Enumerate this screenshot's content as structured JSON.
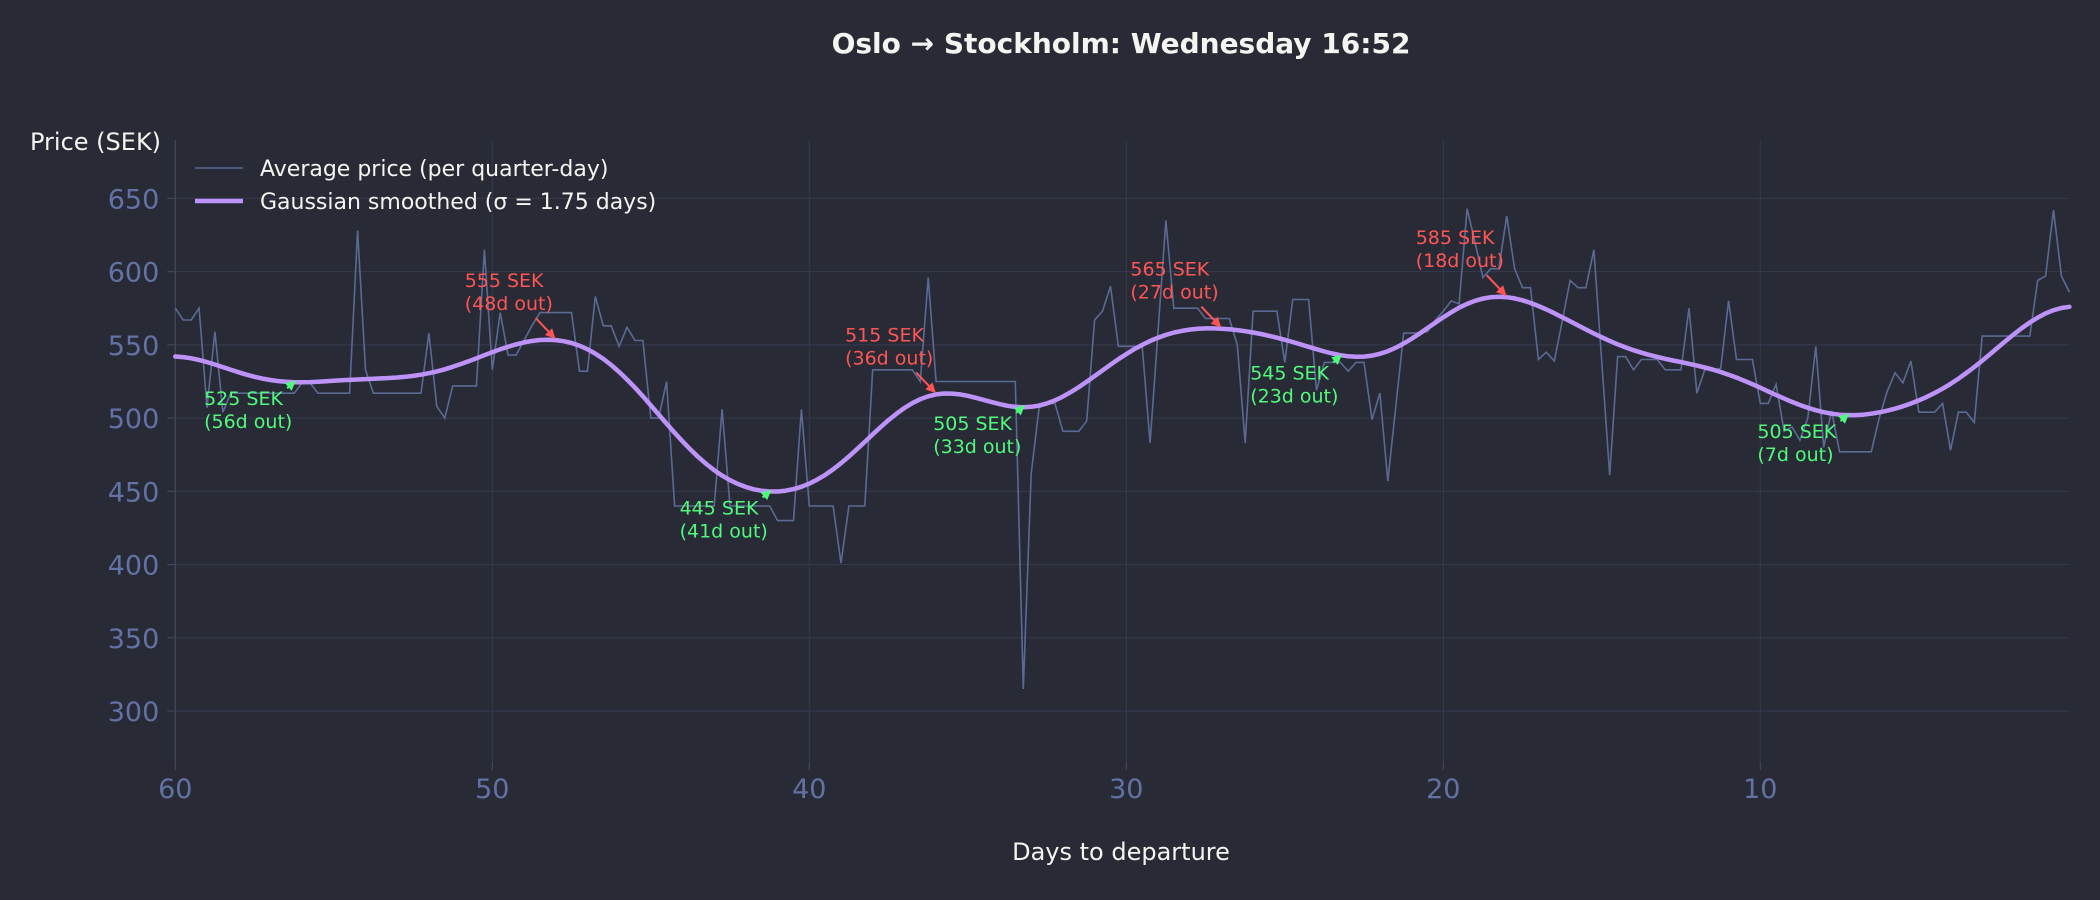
{
  "chart_data": {
    "type": "line",
    "title": "Oslo → Stockholm: Wednesday 16:52",
    "xlabel": "Days to departure",
    "ylabel": "Price (SEK)",
    "xlim": [
      60,
      0.25
    ],
    "ylim": [
      265,
      690
    ],
    "x_reversed": true,
    "grid": true,
    "legend_position": "top-left",
    "x_ticks": [
      60,
      50,
      40,
      30,
      20,
      10
    ],
    "y_ticks": [
      300,
      350,
      400,
      450,
      500,
      550,
      600,
      650
    ],
    "x_start": 60,
    "x_step": -0.25,
    "series": [
      {
        "name": "Average price (per quarter-day)",
        "color": "#5b6a94",
        "values": [
          575,
          567,
          567,
          575,
          507,
          559,
          504,
          517,
          517,
          517,
          517,
          517,
          517,
          517,
          517,
          517,
          524,
          524,
          517,
          517,
          517,
          517,
          517,
          628,
          533,
          517,
          517,
          517,
          517,
          517,
          517,
          517,
          558,
          508,
          500,
          522,
          522,
          522,
          522,
          615,
          533,
          572,
          543,
          543,
          553,
          563,
          572,
          572,
          572,
          572,
          572,
          532,
          532,
          583,
          563,
          563,
          549,
          562,
          553,
          553,
          500,
          500,
          525,
          440,
          440,
          440,
          440,
          440,
          440,
          506,
          440,
          440,
          440,
          440,
          440,
          440,
          430,
          430,
          430,
          506,
          440,
          440,
          440,
          440,
          401,
          440,
          440,
          440,
          533,
          533,
          533,
          533,
          533,
          533,
          525,
          596,
          525,
          525,
          525,
          525,
          525,
          525,
          525,
          525,
          525,
          525,
          525,
          315,
          462,
          507,
          510,
          510,
          491,
          491,
          491,
          498,
          567,
          573,
          590,
          549,
          549,
          549,
          549,
          483,
          559,
          635,
          575,
          575,
          575,
          575,
          568,
          568,
          568,
          568,
          550,
          483,
          573,
          573,
          573,
          573,
          538,
          581,
          581,
          581,
          519,
          538,
          538,
          538,
          532,
          538,
          538,
          499,
          517,
          457,
          508,
          558,
          558,
          558,
          559,
          567,
          573,
          580,
          578,
          643,
          620,
          596,
          602,
          602,
          638,
          602,
          589,
          589,
          540,
          545,
          539,
          566,
          594,
          589,
          589,
          615,
          538,
          461,
          542,
          542,
          533,
          540,
          540,
          540,
          533,
          533,
          533,
          575,
          517,
          533,
          533,
          534,
          580,
          540,
          540,
          540,
          510,
          510,
          523,
          491,
          494,
          485,
          500,
          549,
          480,
          505,
          477,
          477,
          477,
          477,
          477,
          500,
          518,
          531,
          524,
          539,
          504,
          504,
          504,
          510,
          478,
          504,
          504,
          497,
          556,
          556,
          556,
          556,
          556,
          556,
          556,
          594,
          597,
          642,
          597,
          586
        ]
      },
      {
        "name": "Gaussian smoothed (σ = 1.75 days)",
        "color": "#bd93f9",
        "sigma_days": 1.75,
        "derived_from": "Average price (per quarter-day)"
      }
    ],
    "annotations": [
      {
        "kind": "max",
        "value": 555,
        "days_out": 48,
        "label": "555 SEK",
        "sublabel": "(48d out)"
      },
      {
        "kind": "max",
        "value": 515,
        "days_out": 36,
        "label": "515 SEK",
        "sublabel": "(36d out)"
      },
      {
        "kind": "max",
        "value": 565,
        "days_out": 27,
        "label": "565 SEK",
        "sublabel": "(27d out)"
      },
      {
        "kind": "max",
        "value": 585,
        "days_out": 18,
        "label": "585 SEK",
        "sublabel": "(18d out)"
      },
      {
        "kind": "min",
        "value": 525,
        "days_out": 56,
        "label": "525 SEK",
        "sublabel": "(56d out)"
      },
      {
        "kind": "min",
        "value": 445,
        "days_out": 41,
        "label": "445 SEK",
        "sublabel": "(41d out)"
      },
      {
        "kind": "min",
        "value": 505,
        "days_out": 33,
        "label": "505 SEK",
        "sublabel": "(33d out)"
      },
      {
        "kind": "min",
        "value": 545,
        "days_out": 23,
        "label": "545 SEK",
        "sublabel": "(23d out)"
      },
      {
        "kind": "min",
        "value": 505,
        "days_out": 7,
        "label": "505 SEK",
        "sublabel": "(7d out)"
      }
    ],
    "colors": {
      "background": "#282a36",
      "grid": "#363a4e",
      "tick_text": "#6272a4",
      "text": "#f4f4f0",
      "max_annotation": "#ff5555",
      "min_annotation": "#50fa7b"
    }
  }
}
